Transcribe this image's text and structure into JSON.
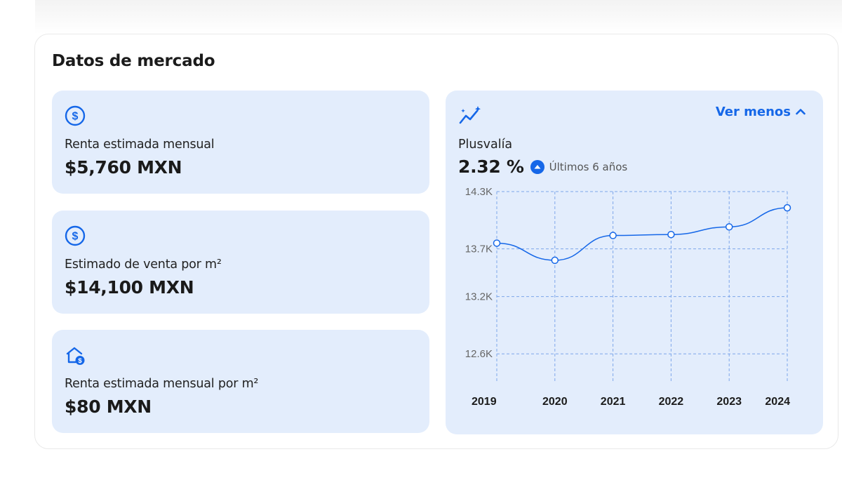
{
  "section": {
    "title": "Datos de mercado"
  },
  "cards": [
    {
      "icon": "dollar-circle-icon",
      "label": "Renta estimada mensual",
      "value": "$5,760 MXN"
    },
    {
      "icon": "dollar-circle-icon",
      "label": "Estimado de venta por m²",
      "value": "$14,100 MXN"
    },
    {
      "icon": "house-dollar-icon",
      "label": "Renta estimada mensual por m²",
      "value": "$80 MXN"
    }
  ],
  "plusvalia": {
    "icon": "trend-sparkle-icon",
    "toggle_label": "Ver menos",
    "toggle_icon": "chevron-up-icon",
    "label": "Plusvalía",
    "value": "2.32 %",
    "badge_icon": "arrow-up-circle-icon",
    "period": "Últimos 6 años"
  },
  "colors": {
    "accent": "#1567e8",
    "card_bg": "#e3edfc",
    "grid": "#7ea6ea"
  },
  "chart_data": {
    "type": "line",
    "x": [
      "2019",
      "2020",
      "2021",
      "2022",
      "2023",
      "2024"
    ],
    "series": [
      {
        "values": [
          13760,
          13580,
          13840,
          13850,
          13930,
          14130
        ]
      }
    ],
    "y_ticks": [
      "14.3K",
      "13.7K",
      "13.2K",
      "12.6K"
    ],
    "y_tick_values": [
      14300,
      13700,
      13200,
      12600
    ],
    "ylim": [
      12300,
      14300
    ],
    "grid": true,
    "line_style": "smooth",
    "markers": "hollow-circle"
  }
}
